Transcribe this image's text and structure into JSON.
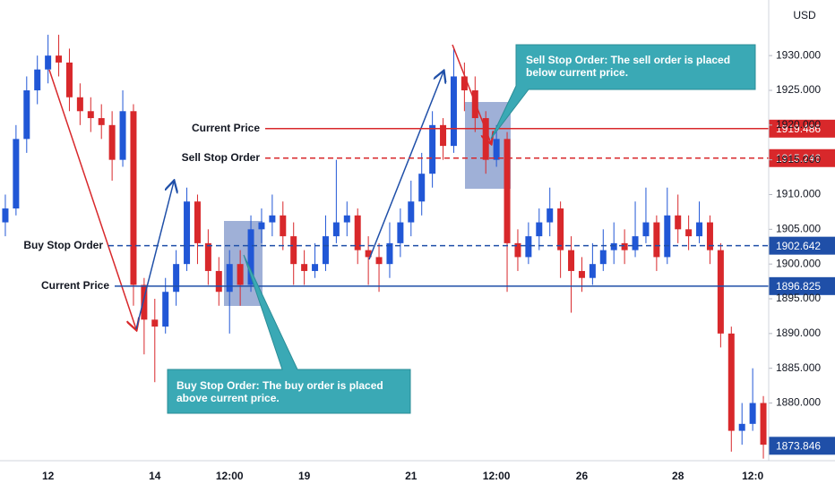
{
  "chart_data": {
    "type": "candlestick",
    "currency": "USD",
    "up_color": "#2157d6",
    "down_color": "#d8282b",
    "ylim": [
      1871.7,
      1938
    ],
    "yticks": [
      {
        "value": 1880,
        "label": "1880.000"
      },
      {
        "value": 1885,
        "label": "1885.000"
      },
      {
        "value": 1890,
        "label": "1890.000"
      },
      {
        "value": 1895,
        "label": "1895.000"
      },
      {
        "value": 1900,
        "label": "1900.000"
      },
      {
        "value": 1905,
        "label": "1905.000"
      },
      {
        "value": 1910,
        "label": "1910.000"
      },
      {
        "value": 1915,
        "label": "1915.000"
      },
      {
        "value": 1920,
        "label": "1920.000"
      },
      {
        "value": 1925,
        "label": "1925.000"
      },
      {
        "value": 1930,
        "label": "1930.000"
      }
    ],
    "categories": [
      null,
      null,
      null,
      null,
      "12",
      null,
      null,
      null,
      null,
      null,
      null,
      null,
      null,
      null,
      "14",
      null,
      null,
      null,
      null,
      null,
      null,
      "12:00",
      null,
      null,
      null,
      null,
      null,
      null,
      "19",
      null,
      null,
      null,
      null,
      null,
      null,
      null,
      null,
      null,
      "21",
      null,
      null,
      null,
      null,
      null,
      null,
      null,
      "12:00",
      null,
      null,
      null,
      null,
      null,
      null,
      null,
      "26",
      null,
      null,
      null,
      null,
      null,
      null,
      null,
      null,
      "28",
      null,
      null,
      null,
      null,
      null,
      null,
      "12:0",
      null
    ],
    "open": [
      1906,
      1908,
      1918,
      1925,
      1928,
      1930,
      1929,
      1924,
      1922,
      1921,
      1920,
      1915,
      1922,
      1897,
      1892,
      1891,
      1896,
      1900,
      1909,
      1903,
      1899,
      1896,
      1900,
      1897,
      1905,
      1906,
      1907,
      1904,
      1900,
      1899,
      1900,
      1904,
      1906,
      1907,
      1902,
      1901,
      1900,
      1903,
      1906,
      1909,
      1913,
      1920,
      1917,
      1927,
      1925,
      1921,
      1915,
      1918,
      1903,
      1901,
      1904,
      1906,
      1908,
      1902,
      1899,
      1898,
      1900,
      1902,
      1903,
      1902,
      1904,
      1906,
      1901,
      1907,
      1905,
      1904,
      1906,
      1902,
      1890,
      1876,
      1877,
      1880
    ],
    "high": [
      1910,
      1920,
      1927,
      1930,
      1933,
      1933,
      1931,
      1926,
      1924,
      1923,
      1922,
      1925,
      1923,
      1898,
      1895,
      1898,
      1902,
      1911,
      1910,
      1905,
      1901,
      1902,
      1902,
      1907,
      1908,
      1910,
      1909,
      1906,
      1902,
      1903,
      1907,
      1915,
      1909,
      1908,
      1904,
      1903,
      1906,
      1908,
      1912,
      1916,
      1922,
      1921,
      1931,
      1929,
      1927,
      1922,
      1920,
      1919,
      1905,
      1906,
      1908,
      1911,
      1909,
      1904,
      1901,
      1903,
      1905,
      1906,
      1905,
      1909,
      1911,
      1907,
      1911,
      1910,
      1907,
      1909,
      1907,
      1903,
      1891,
      1880,
      1885,
      1881
    ],
    "low": [
      1904,
      1907,
      1916,
      1923,
      1926,
      1927,
      1922,
      1920,
      1919,
      1918,
      1912,
      1914,
      1894,
      1887,
      1883,
      1890,
      1894,
      1899,
      1900,
      1897,
      1894,
      1890,
      1894,
      1896,
      1903,
      1904,
      1902,
      1897,
      1897,
      1898,
      1899,
      1903,
      1904,
      1900,
      1897,
      1896,
      1898,
      1901,
      1904,
      1907,
      1911,
      1915,
      1916,
      1922,
      1919,
      1913,
      1914,
      1896,
      1899,
      1900,
      1902,
      1904,
      1898,
      1893,
      1896,
      1897,
      1899,
      1900,
      1900,
      1901,
      1903,
      1899,
      1900,
      1903,
      1902,
      1903,
      1900,
      1888,
      1873,
      1874,
      1876,
      1872
    ],
    "close": [
      1908,
      1918,
      1925,
      1928,
      1930,
      1929,
      1924,
      1922,
      1921,
      1920,
      1915,
      1922,
      1897,
      1892,
      1891,
      1896,
      1900,
      1909,
      1903,
      1899,
      1896,
      1900,
      1897,
      1905,
      1906,
      1907,
      1904,
      1900,
      1899,
      1900,
      1904,
      1906,
      1907,
      1902,
      1901,
      1900,
      1903,
      1906,
      1909,
      1913,
      1920,
      1917,
      1927,
      1925,
      1921,
      1915,
      1918,
      1903,
      1901,
      1904,
      1906,
      1908,
      1902,
      1899,
      1898,
      1900,
      1902,
      1903,
      1902,
      1904,
      1906,
      1901,
      1907,
      1905,
      1904,
      1906,
      1902,
      1890,
      1876,
      1877,
      1880,
      1874
    ],
    "levels": [
      {
        "name": "Current Price",
        "value": 1919.486,
        "color": "#d8282b",
        "style": "solid"
      },
      {
        "name": "Sell Stop Order",
        "value": 1915.246,
        "color": "#d8282b",
        "style": "dashed"
      },
      {
        "name": "Buy Stop Order",
        "value": 1902.642,
        "color": "#1f4fa8",
        "style": "dashed"
      },
      {
        "name": "Current Price",
        "value": 1896.825,
        "color": "#1f4fa8",
        "style": "solid"
      }
    ],
    "last_price": 1873.846,
    "annotations": [
      {
        "lines": [
          "Sell Stop Order: The sell order is placed",
          "below current price."
        ]
      },
      {
        "lines": [
          "Buy Stop Order: The buy order is placed",
          "above current price."
        ]
      }
    ]
  }
}
